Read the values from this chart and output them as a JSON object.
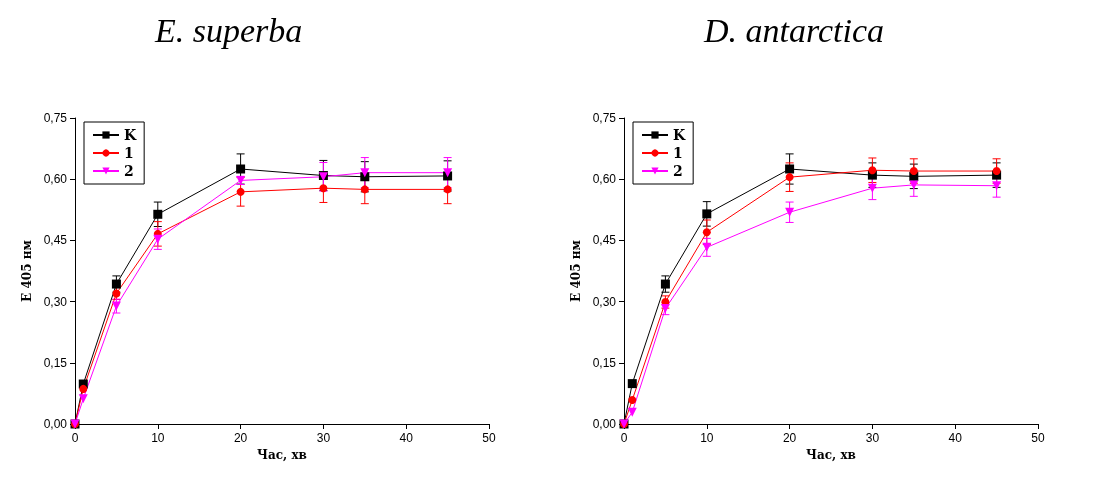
{
  "chart_data": [
    {
      "type": "line",
      "title": "E. superba",
      "xlabel": "Час, хв",
      "ylabel": "E 405 нм",
      "x": [
        0,
        1,
        5,
        10,
        20,
        30,
        35,
        45
      ],
      "xlim": [
        0,
        50
      ],
      "xticks": [
        0,
        10,
        20,
        30,
        40,
        50
      ],
      "ylim": [
        0,
        0.75
      ],
      "yticks": [
        {
          "value": 0,
          "label": "0,00"
        },
        {
          "value": 0.15,
          "label": "0,15"
        },
        {
          "value": 0.3,
          "label": "0,30"
        },
        {
          "value": 0.45,
          "label": "0,45"
        },
        {
          "value": 0.6,
          "label": "0,60"
        },
        {
          "value": 0.75,
          "label": "0,75"
        }
      ],
      "grid": false,
      "legend": "top left",
      "line_style": "solid",
      "series": [
        {
          "name": "K",
          "color": "#000000",
          "marker": "square",
          "values": [
            0,
            0.098,
            0.343,
            0.514,
            0.625,
            0.609,
            0.606,
            0.608
          ],
          "errors": [
            null,
            null,
            0.02,
            0.03,
            0.037,
            0.037,
            0.037,
            0.037
          ]
        },
        {
          "name": "1",
          "color": "#ff0000",
          "marker": "circle",
          "values": [
            0,
            0.086,
            0.32,
            0.466,
            0.569,
            0.578,
            0.575,
            0.575
          ],
          "errors": [
            null,
            null,
            0.015,
            0.03,
            0.035,
            0.035,
            0.035,
            0.035
          ]
        },
        {
          "name": "2",
          "color": "#ff00ff",
          "marker": "triangle",
          "values": [
            0,
            0.062,
            0.289,
            0.453,
            0.597,
            0.606,
            0.616,
            0.616
          ],
          "errors": [
            null,
            null,
            0.017,
            0.025,
            0.01,
            0.035,
            0.037,
            0.037
          ]
        }
      ]
    },
    {
      "type": "line",
      "title": "D. antarctica",
      "xlabel": "Час, хв",
      "ylabel": "E 405 нм",
      "x": [
        0,
        1,
        5,
        10,
        20,
        30,
        35,
        45
      ],
      "xlim": [
        0,
        50
      ],
      "xticks": [
        0,
        10,
        20,
        30,
        40,
        50
      ],
      "ylim": [
        0,
        0.75
      ],
      "yticks": [
        {
          "value": 0,
          "label": "0,00"
        },
        {
          "value": 0.15,
          "label": "0,15"
        },
        {
          "value": 0.3,
          "label": "0,30"
        },
        {
          "value": 0.45,
          "label": "0,45"
        },
        {
          "value": 0.6,
          "label": "0,60"
        },
        {
          "value": 0.75,
          "label": "0,75"
        }
      ],
      "grid": false,
      "legend": "top left",
      "line_style": "solid",
      "series": [
        {
          "name": "K",
          "color": "#000000",
          "marker": "square",
          "values": [
            0,
            0.099,
            0.343,
            0.515,
            0.625,
            0.61,
            0.607,
            0.61
          ],
          "errors": [
            null,
            null,
            0.02,
            0.03,
            0.037,
            0.03,
            0.03,
            0.03
          ]
        },
        {
          "name": "1",
          "color": "#ff0000",
          "marker": "circle",
          "values": [
            0,
            0.059,
            0.299,
            0.47,
            0.605,
            0.622,
            0.62,
            0.62
          ],
          "errors": [
            null,
            null,
            0.015,
            0.03,
            0.035,
            0.03,
            0.03,
            0.03
          ]
        },
        {
          "name": "2",
          "color": "#ff00ff",
          "marker": "triangle",
          "values": [
            0,
            0.029,
            0.283,
            0.433,
            0.519,
            0.578,
            0.586,
            0.584
          ],
          "errors": [
            null,
            null,
            0.015,
            0.022,
            0.025,
            0.028,
            0.028,
            0.028
          ]
        }
      ]
    }
  ]
}
